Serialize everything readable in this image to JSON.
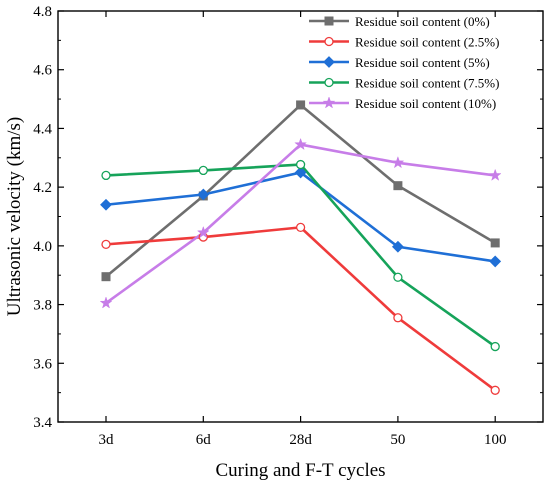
{
  "chart_data": {
    "type": "line",
    "categories": [
      "3d",
      "6d",
      "28d",
      "50",
      "100"
    ],
    "xlabel": "Curing and F-T cycles",
    "ylabel": "Ultrasonic velocity (km/s)",
    "ylim": [
      3.4,
      4.8
    ],
    "yticks": [
      "3.4",
      "3.6",
      "3.8",
      "4.0",
      "4.2",
      "4.4",
      "4.6",
      "4.8"
    ],
    "grid": false,
    "legend_position": "top-right",
    "series": [
      {
        "name": "Residue soil content (0%)",
        "color": "#6e6e6e",
        "marker": "square-filled",
        "values": [
          3.895,
          4.17,
          4.48,
          4.205,
          4.01
        ]
      },
      {
        "name": "Residue soil content (2.5%)",
        "color": "#ef3b3b",
        "marker": "circle-open",
        "values": [
          4.005,
          4.03,
          4.063,
          3.755,
          3.508
        ]
      },
      {
        "name": "Residue soil content (5%)",
        "color": "#1f6fd6",
        "marker": "diamond-filled",
        "values": [
          4.14,
          4.175,
          4.25,
          3.997,
          3.947
        ]
      },
      {
        "name": "Residue soil content (7.5%)",
        "color": "#16a35a",
        "marker": "circle-open",
        "values": [
          4.24,
          4.257,
          4.277,
          3.893,
          3.657
        ]
      },
      {
        "name": "Residue soil content (10%)",
        "color": "#c77de8",
        "marker": "star",
        "values": [
          3.805,
          4.045,
          4.345,
          4.283,
          4.24
        ]
      }
    ]
  }
}
